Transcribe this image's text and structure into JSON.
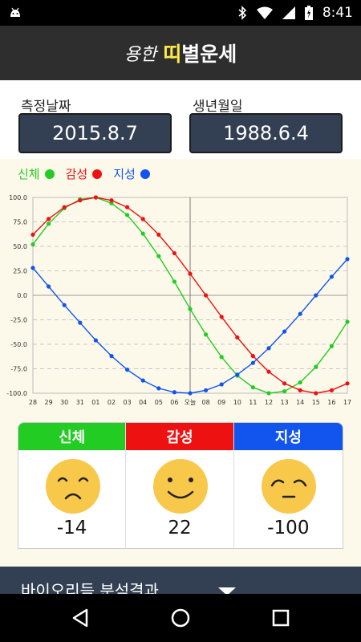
{
  "status_bar": {
    "time": "8:41"
  },
  "app_bar": {
    "title_part1": "용한",
    "title_part2": "띠",
    "title_part3": "별운세"
  },
  "dates": {
    "measure_label": "측정날짜",
    "measure_value": "2015.8.7",
    "birth_label": "생년월일",
    "birth_value": "1988.6.4"
  },
  "legend": [
    {
      "label": "신체",
      "color": "#22cc22"
    },
    {
      "label": "감성",
      "color": "#ee1111"
    },
    {
      "label": "지성",
      "color": "#1155ee"
    }
  ],
  "chart_data": {
    "type": "line",
    "x": [
      "28",
      "29",
      "30",
      "31",
      "01",
      "02",
      "03",
      "04",
      "05",
      "06",
      "오늘",
      "08",
      "09",
      "10",
      "11",
      "12",
      "13",
      "14",
      "15",
      "16",
      "17"
    ],
    "ylim": [
      -100,
      100
    ],
    "yticks": [
      "100.0",
      "75.0",
      "50.0",
      "25.0",
      "0.0",
      "-25.0",
      "-50.0",
      "-75.0",
      "-100.0"
    ],
    "today_index": 10,
    "series": [
      {
        "name": "신체",
        "color": "#22cc22",
        "values": [
          52,
          73,
          89,
          98,
          100,
          94,
          82,
          63,
          40,
          14,
          -14,
          -40,
          -63,
          -82,
          -94,
          -100,
          -98,
          -89,
          -73,
          -52,
          -27
        ]
      },
      {
        "name": "감성",
        "color": "#ee1111",
        "values": [
          62,
          78,
          90,
          97,
          100,
          97,
          90,
          78,
          62,
          43,
          22,
          0,
          -22,
          -43,
          -62,
          -78,
          -90,
          -97,
          -100,
          -97,
          -90
        ]
      },
      {
        "name": "지성",
        "color": "#1155ee",
        "values": [
          28,
          9,
          -10,
          -28,
          -46,
          -62,
          -76,
          -87,
          -95,
          -99,
          -100,
          -97,
          -91,
          -81,
          -69,
          -54,
          -37,
          -19,
          0,
          19,
          37
        ]
      }
    ]
  },
  "cards": [
    {
      "label": "신체",
      "color": "#22cc22",
      "value": "-14",
      "mood": "sad"
    },
    {
      "label": "감성",
      "color": "#ee1111",
      "value": "22",
      "mood": "happy"
    },
    {
      "label": "지성",
      "color": "#1155ee",
      "value": "-100",
      "mood": "tired"
    }
  ],
  "bottom_bar": {
    "label": "바이오리듬 분석결과"
  }
}
